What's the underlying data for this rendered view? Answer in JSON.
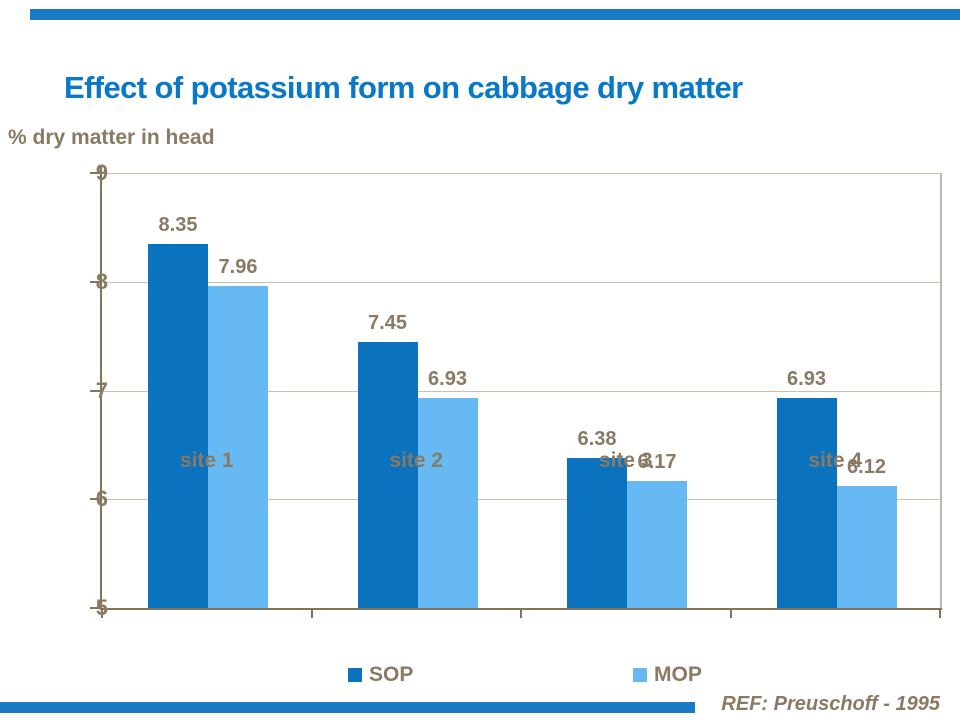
{
  "page": {
    "title": "Effect of potassium form on cabbage dry matter",
    "y_axis_title": "% dry matter in head",
    "ref_note": "REF: Preuschoff - 1995"
  },
  "colors": {
    "title_blue": "#0a78c8",
    "accent_bar_blue": "#1b7ac4",
    "label_brown": "#8a7a64",
    "axis_brown": "#857557",
    "gridline_tan": "#c9c0b1",
    "plot_border_tan": "#c0b7a8",
    "sop_blue": "#0b72be",
    "mop_blue": "#66b9f2"
  },
  "chart_data": {
    "type": "bar",
    "title": "Effect of potassium form on cabbage dry matter",
    "xlabel": "",
    "ylabel": "% dry matter in head",
    "categories": [
      "site 1",
      "site 2",
      "site 3",
      "site 4"
    ],
    "series": [
      {
        "name": "SOP",
        "color": "#0b72be",
        "values": [
          8.35,
          7.45,
          6.38,
          6.93
        ]
      },
      {
        "name": "MOP",
        "color": "#66b9f2",
        "values": [
          7.96,
          6.93,
          6.17,
          6.12
        ]
      }
    ],
    "value_label_decimals": 2,
    "ylim": [
      5,
      9
    ],
    "yticks": [
      5,
      6,
      7,
      8,
      9
    ],
    "grid": true,
    "legend_position": "bottom",
    "annotation": "REF: Preuschoff - 1995"
  }
}
